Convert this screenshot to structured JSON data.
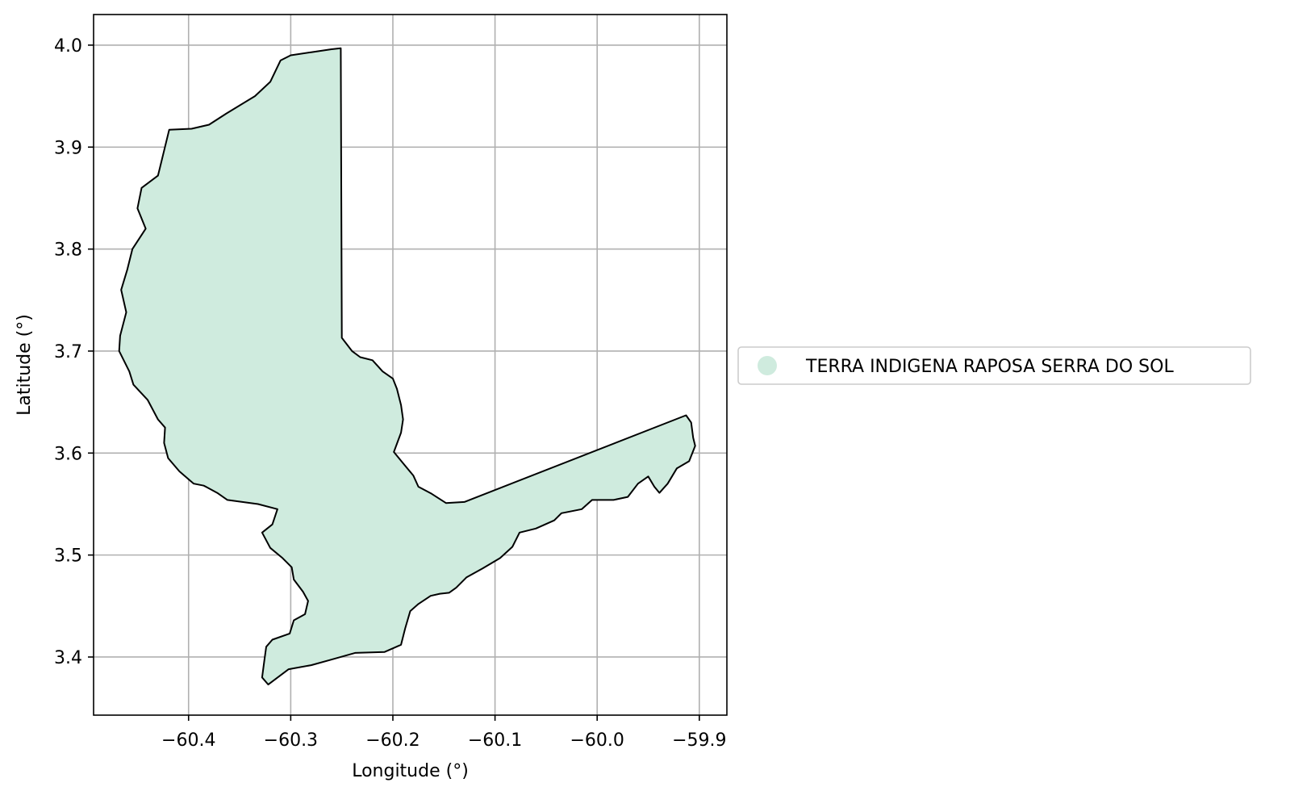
{
  "chart_data": {
    "type": "map",
    "xlabel": "Longitude (°)",
    "ylabel": "Latitude (°)",
    "xlim": [
      -60.493,
      -59.873
    ],
    "ylim": [
      3.343,
      4.03
    ],
    "xticks": [
      -60.4,
      -60.3,
      -60.2,
      -60.1,
      -60.0,
      -59.9
    ],
    "xtick_labels": [
      "−60.4",
      "−60.3",
      "−60.2",
      "−60.1",
      "−60.0",
      "−59.9"
    ],
    "yticks": [
      3.4,
      3.5,
      3.6,
      3.7,
      3.8,
      3.9,
      4.0
    ],
    "ytick_labels": [
      "3.4",
      "3.5",
      "3.6",
      "3.7",
      "3.8",
      "3.9",
      "4.0"
    ],
    "grid": true,
    "legend_position": "right-center",
    "fill_color": "#cfebde",
    "edge_color": "#000000",
    "regions": [
      {
        "name": "TERRA INDIGENA RAPOSA SERRA DO SOL",
        "boundary": [
          [
            -60.251,
            3.997
          ],
          [
            -60.25,
            3.713
          ],
          [
            -60.24,
            3.7
          ],
          [
            -60.232,
            3.694
          ],
          [
            -60.22,
            3.691
          ],
          [
            -60.21,
            3.68
          ],
          [
            -60.2,
            3.673
          ],
          [
            -60.196,
            3.663
          ],
          [
            -60.192,
            3.647
          ],
          [
            -60.19,
            3.633
          ],
          [
            -60.192,
            3.62
          ],
          [
            -60.199,
            3.601
          ],
          [
            -60.19,
            3.59
          ],
          [
            -60.18,
            3.578
          ],
          [
            -60.175,
            3.567
          ],
          [
            -60.162,
            3.56
          ],
          [
            -60.148,
            3.551
          ],
          [
            -60.13,
            3.552
          ],
          [
            -59.913,
            3.637
          ],
          [
            -59.908,
            3.63
          ],
          [
            -59.906,
            3.615
          ],
          [
            -59.904,
            3.607
          ],
          [
            -59.91,
            3.592
          ],
          [
            -59.922,
            3.585
          ],
          [
            -59.931,
            3.57
          ],
          [
            -59.939,
            3.561
          ],
          [
            -59.944,
            3.567
          ],
          [
            -59.95,
            3.577
          ],
          [
            -59.96,
            3.57
          ],
          [
            -59.97,
            3.557
          ],
          [
            -59.984,
            3.554
          ],
          [
            -60.005,
            3.554
          ],
          [
            -60.015,
            3.545
          ],
          [
            -60.035,
            3.541
          ],
          [
            -60.042,
            3.534
          ],
          [
            -60.06,
            3.526
          ],
          [
            -60.076,
            3.522
          ],
          [
            -60.083,
            3.508
          ],
          [
            -60.095,
            3.497
          ],
          [
            -60.112,
            3.487
          ],
          [
            -60.128,
            3.478
          ],
          [
            -60.138,
            3.468
          ],
          [
            -60.145,
            3.463
          ],
          [
            -60.154,
            3.462
          ],
          [
            -60.163,
            3.46
          ],
          [
            -60.175,
            3.452
          ],
          [
            -60.183,
            3.445
          ],
          [
            -60.188,
            3.428
          ],
          [
            -60.192,
            3.412
          ],
          [
            -60.208,
            3.405
          ],
          [
            -60.237,
            3.404
          ],
          [
            -60.262,
            3.397
          ],
          [
            -60.28,
            3.392
          ],
          [
            -60.302,
            3.388
          ],
          [
            -60.322,
            3.373
          ],
          [
            -60.328,
            3.38
          ],
          [
            -60.326,
            3.395
          ],
          [
            -60.324,
            3.41
          ],
          [
            -60.318,
            3.417
          ],
          [
            -60.301,
            3.423
          ],
          [
            -60.297,
            3.436
          ],
          [
            -60.286,
            3.442
          ],
          [
            -60.283,
            3.455
          ],
          [
            -60.288,
            3.464
          ],
          [
            -60.297,
            3.476
          ],
          [
            -60.299,
            3.488
          ],
          [
            -60.308,
            3.497
          ],
          [
            -60.32,
            3.507
          ],
          [
            -60.328,
            3.522
          ],
          [
            -60.318,
            3.53
          ],
          [
            -60.313,
            3.545
          ],
          [
            -60.332,
            3.55
          ],
          [
            -60.362,
            3.554
          ],
          [
            -60.372,
            3.561
          ],
          [
            -60.385,
            3.568
          ],
          [
            -60.395,
            3.57
          ],
          [
            -60.409,
            3.582
          ],
          [
            -60.42,
            3.595
          ],
          [
            -60.424,
            3.61
          ],
          [
            -60.423,
            3.625
          ],
          [
            -60.43,
            3.633
          ],
          [
            -60.44,
            3.652
          ],
          [
            -60.454,
            3.667
          ],
          [
            -60.458,
            3.68
          ],
          [
            -60.468,
            3.7
          ],
          [
            -60.467,
            3.715
          ],
          [
            -60.461,
            3.738
          ],
          [
            -60.466,
            3.76
          ],
          [
            -60.46,
            3.78
          ],
          [
            -60.455,
            3.8
          ],
          [
            -60.442,
            3.82
          ],
          [
            -60.45,
            3.84
          ],
          [
            -60.446,
            3.86
          ],
          [
            -60.43,
            3.872
          ],
          [
            -60.428,
            3.88
          ],
          [
            -60.419,
            3.917
          ],
          [
            -60.397,
            3.918
          ],
          [
            -60.38,
            3.922
          ],
          [
            -60.363,
            3.933
          ],
          [
            -60.335,
            3.95
          ],
          [
            -60.32,
            3.964
          ],
          [
            -60.31,
            3.985
          ],
          [
            -60.3,
            3.99
          ],
          [
            -60.28,
            3.993
          ],
          [
            -60.26,
            3.996
          ]
        ]
      }
    ]
  }
}
